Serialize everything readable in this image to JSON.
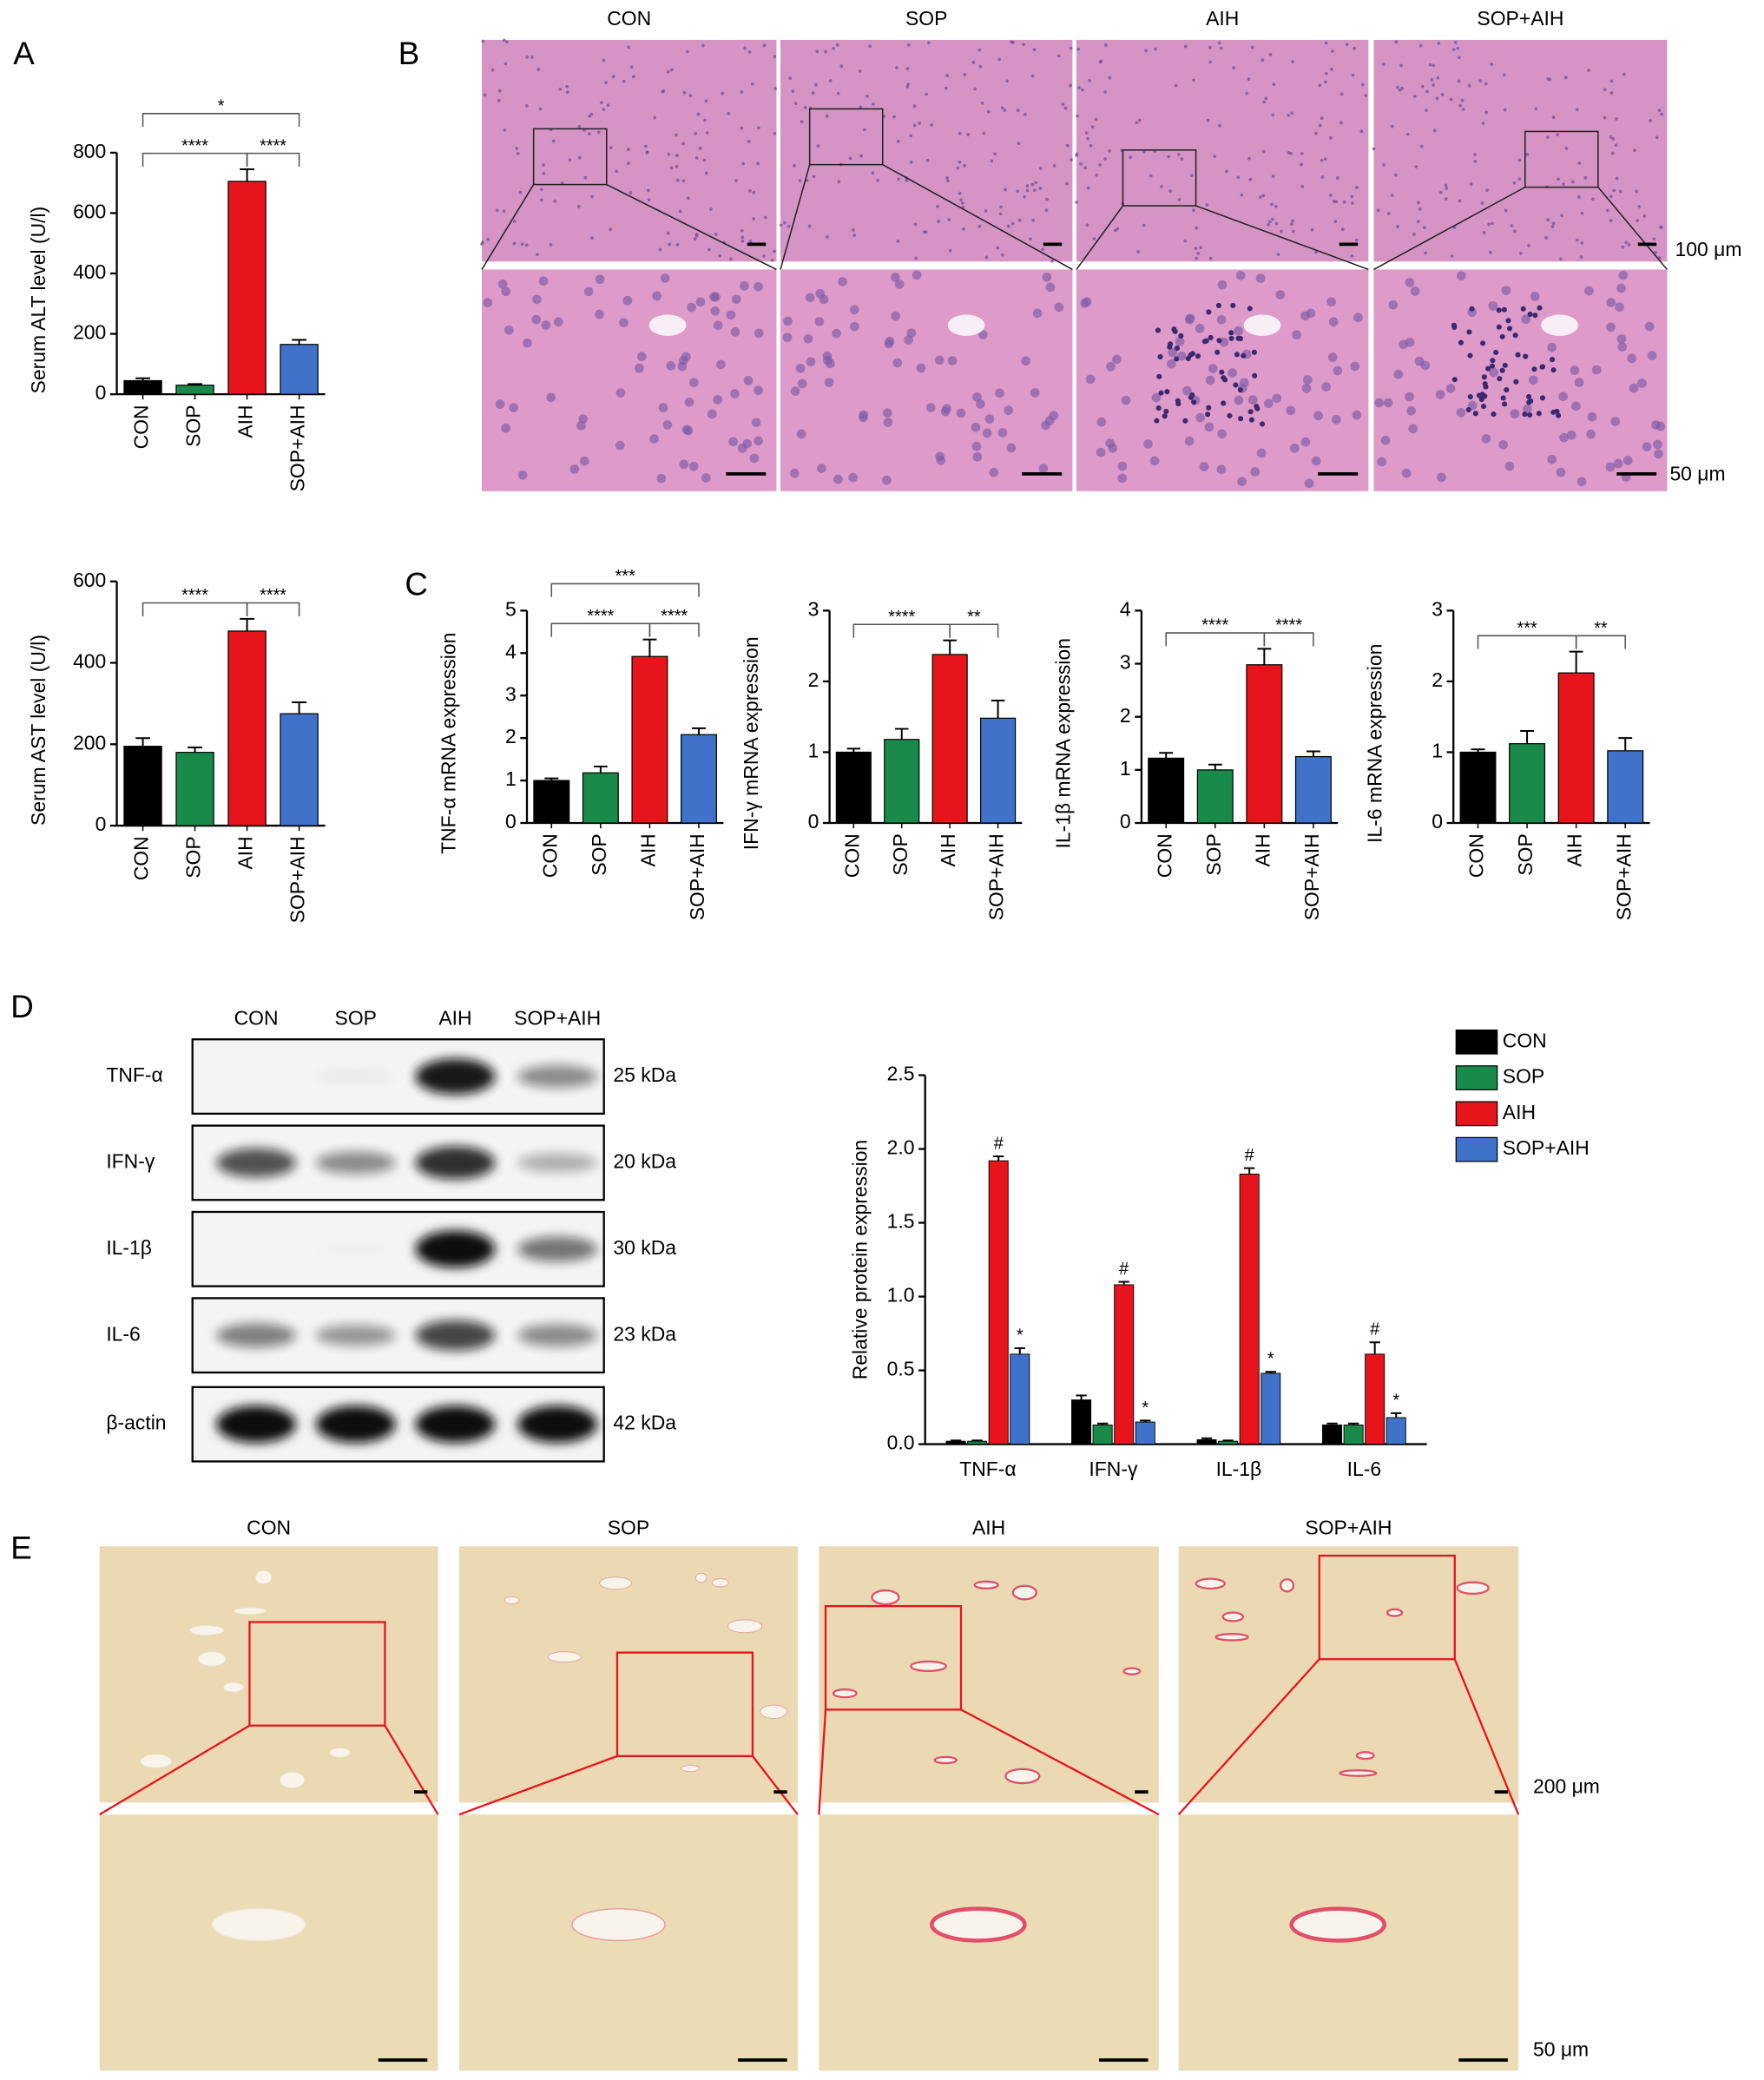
{
  "panels": [
    "A",
    "B",
    "C",
    "D",
    "E"
  ],
  "histology_he": {
    "groups": [
      "CON",
      "SOP",
      "AIH",
      "SOP+AIH"
    ],
    "scale_bars": [
      "100 μm",
      "50 μm"
    ]
  },
  "western_blot": {
    "lanes": [
      "CON",
      "SOP",
      "AIH",
      "SOP+AIH"
    ],
    "proteins": [
      {
        "name": "TNF-α",
        "size": "25 kDa"
      },
      {
        "name": "IFN-γ",
        "size": "20 kDa"
      },
      {
        "name": "IL-1β",
        "size": "30 kDa"
      },
      {
        "name": "IL-6",
        "size": "23 kDa"
      },
      {
        "name": "β-actin",
        "size": "42 kDa"
      }
    ]
  },
  "sirius_red": {
    "groups": [
      "CON",
      "SOP",
      "AIH",
      "SOP+AIH"
    ],
    "scale_bars": [
      "200 μm",
      "50 μm"
    ]
  },
  "chart_data": [
    {
      "type": "bar",
      "ylabel": "Serum ALT level (U/l)",
      "categories": [
        "CON",
        "SOP",
        "AIH",
        "SOP+AIH"
      ],
      "values": [
        45,
        30,
        705,
        165
      ],
      "errors": [
        8,
        4,
        40,
        15
      ],
      "colors": [
        "#000000",
        "#1a8a4a",
        "#e8141c",
        "#3f72c8"
      ],
      "ylim": [
        0,
        800
      ],
      "yticks": [
        0,
        200,
        400,
        600,
        800
      ],
      "annotations": [
        {
          "text": "****",
          "between": [
            "CON",
            "AIH"
          ]
        },
        {
          "text": "****",
          "between": [
            "AIH",
            "SOP+AIH"
          ]
        },
        {
          "text": "*",
          "between": [
            "CON",
            "SOP+AIH"
          ]
        }
      ]
    },
    {
      "type": "bar",
      "ylabel": "Serum AST level (U/l)",
      "categories": [
        "CON",
        "SOP",
        "AIH",
        "SOP+AIH"
      ],
      "values": [
        195,
        180,
        478,
        275
      ],
      "errors": [
        20,
        12,
        30,
        28
      ],
      "colors": [
        "#000000",
        "#1a8a4a",
        "#e8141c",
        "#3f72c8"
      ],
      "ylim": [
        0,
        600
      ],
      "yticks": [
        0,
        200,
        400,
        600
      ],
      "annotations": [
        {
          "text": "****",
          "between": [
            "CON",
            "AIH"
          ]
        },
        {
          "text": "****",
          "between": [
            "AIH",
            "SOP+AIH"
          ]
        }
      ]
    },
    {
      "type": "bar",
      "ylabel": "TNF-α mRNA expression",
      "categories": [
        "CON",
        "SOP",
        "AIH",
        "SOP+AIH"
      ],
      "values": [
        1.0,
        1.18,
        3.92,
        2.08
      ],
      "errors": [
        0.05,
        0.15,
        0.4,
        0.15
      ],
      "colors": [
        "#000000",
        "#1a8a4a",
        "#e8141c",
        "#3f72c8"
      ],
      "ylim": [
        0,
        5
      ],
      "yticks": [
        0,
        1,
        2,
        3,
        4,
        5
      ],
      "annotations": [
        {
          "text": "****",
          "between": [
            "CON",
            "AIH"
          ]
        },
        {
          "text": "****",
          "between": [
            "AIH",
            "SOP+AIH"
          ]
        },
        {
          "text": "***",
          "between": [
            "CON",
            "SOP+AIH"
          ]
        }
      ]
    },
    {
      "type": "bar",
      "ylabel": "IFN-γ mRNA expression",
      "categories": [
        "CON",
        "SOP",
        "AIH",
        "SOP+AIH"
      ],
      "values": [
        1.0,
        1.18,
        2.38,
        1.48
      ],
      "errors": [
        0.05,
        0.15,
        0.2,
        0.25
      ],
      "colors": [
        "#000000",
        "#1a8a4a",
        "#e8141c",
        "#3f72c8"
      ],
      "ylim": [
        0,
        3
      ],
      "yticks": [
        0,
        1,
        2,
        3
      ],
      "annotations": [
        {
          "text": "****",
          "between": [
            "CON",
            "AIH"
          ]
        },
        {
          "text": "**",
          "between": [
            "AIH",
            "SOP+AIH"
          ]
        }
      ]
    },
    {
      "type": "bar",
      "ylabel": "IL-1β mRNA expression",
      "categories": [
        "CON",
        "SOP",
        "AIH",
        "SOP+AIH"
      ],
      "values": [
        1.22,
        1.0,
        2.98,
        1.25
      ],
      "errors": [
        0.1,
        0.1,
        0.3,
        0.1
      ],
      "colors": [
        "#000000",
        "#1a8a4a",
        "#e8141c",
        "#3f72c8"
      ],
      "ylim": [
        0,
        4
      ],
      "yticks": [
        0,
        1,
        2,
        3,
        4
      ],
      "annotations": [
        {
          "text": "****",
          "between": [
            "CON",
            "AIH"
          ]
        },
        {
          "text": "****",
          "between": [
            "AIH",
            "SOP+AIH"
          ]
        }
      ]
    },
    {
      "type": "bar",
      "ylabel": "IL-6 mRNA expression",
      "categories": [
        "CON",
        "SOP",
        "AIH",
        "SOP+AIH"
      ],
      "values": [
        1.0,
        1.12,
        2.12,
        1.02
      ],
      "errors": [
        0.04,
        0.18,
        0.3,
        0.18
      ],
      "colors": [
        "#000000",
        "#1a8a4a",
        "#e8141c",
        "#3f72c8"
      ],
      "ylim": [
        0,
        3
      ],
      "yticks": [
        0,
        1,
        2,
        3
      ],
      "annotations": [
        {
          "text": "***",
          "between": [
            "CON",
            "AIH"
          ]
        },
        {
          "text": "**",
          "between": [
            "AIH",
            "SOP+AIH"
          ]
        }
      ]
    },
    {
      "type": "grouped_bar",
      "ylabel": "Relative protein expression",
      "categories": [
        "TNF-α",
        "IFN-γ",
        "IL-1β",
        "IL-6"
      ],
      "ylim": [
        0,
        2.5
      ],
      "yticks": [
        {
          "value": 0,
          "label": "0.0"
        },
        0.5,
        {
          "value": 1,
          "label": "1.0"
        },
        1.5,
        {
          "value": 2,
          "label": "2.0"
        },
        2.5
      ],
      "legend": "right",
      "series": [
        {
          "name": "CON",
          "color": "#000000",
          "values": [
            0.02,
            0.3,
            0.03,
            0.13
          ],
          "errors": [
            0.005,
            0.03,
            0.01,
            0.01
          ]
        },
        {
          "name": "SOP",
          "color": "#1a8a4a",
          "values": [
            0.02,
            0.13,
            0.02,
            0.13
          ],
          "errors": [
            0.005,
            0.01,
            0.005,
            0.01
          ]
        },
        {
          "name": "AIH",
          "color": "#e8141c",
          "values": [
            1.92,
            1.08,
            1.83,
            0.61
          ],
          "errors": [
            0.03,
            0.02,
            0.04,
            0.08
          ],
          "markers": [
            "#",
            "#",
            "#",
            "#"
          ]
        },
        {
          "name": "SOP+AIH",
          "color": "#3f72c8",
          "values": [
            0.61,
            0.15,
            0.48,
            0.18
          ],
          "errors": [
            0.04,
            0.01,
            0.01,
            0.03
          ],
          "markers": [
            "*",
            "*",
            "*",
            "*"
          ]
        }
      ]
    }
  ]
}
